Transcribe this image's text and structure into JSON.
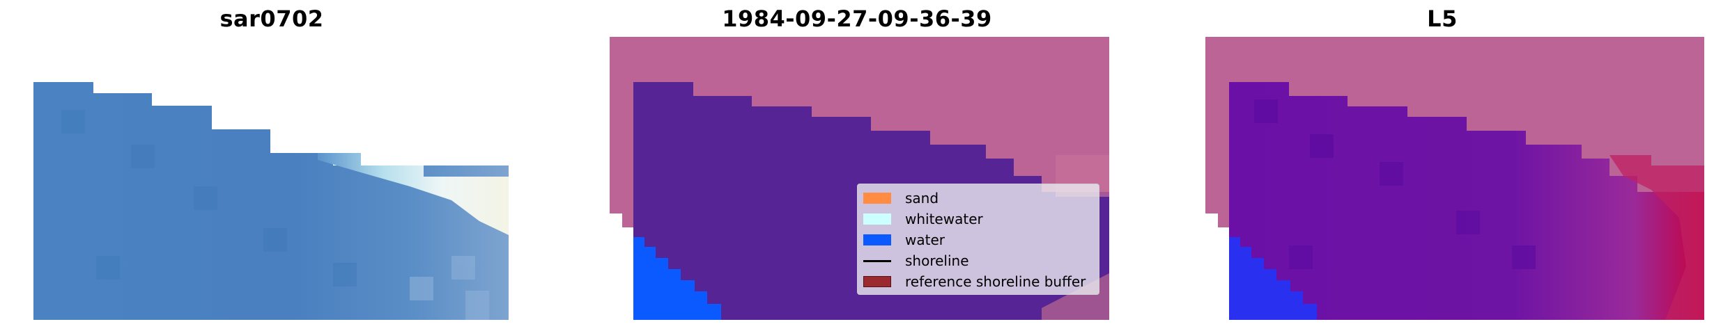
{
  "panels": [
    {
      "title": "sar0702"
    },
    {
      "title": "1984-09-27-09-36-39"
    },
    {
      "title": "L5"
    }
  ],
  "legend": {
    "placement": "lower-right",
    "items": [
      {
        "label": "sand",
        "color": "#ff8c42",
        "kind": "patch"
      },
      {
        "label": "whitewater",
        "color": "#ccffff",
        "kind": "patch"
      },
      {
        "label": "water",
        "color": "#0a5aff",
        "kind": "patch"
      },
      {
        "label": "shoreline",
        "color": "#000000",
        "kind": "line"
      },
      {
        "label": "reference shoreline buffer",
        "color": "#9a2a2e",
        "kind": "patch"
      }
    ]
  },
  "colors": {
    "rgb_water_blue": "#4a80c0",
    "rgb_whitewater": "#eef6f6",
    "buffer_mauve": "#bc6496",
    "water_class_purple": "#562494",
    "water_class_blue": "#0a5aff",
    "index_purple": "#6e10a8",
    "index_red": "#c8003c"
  }
}
